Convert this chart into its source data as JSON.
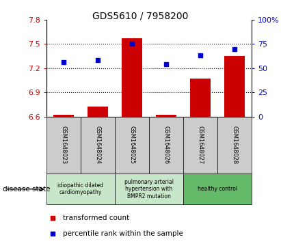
{
  "title": "GDS5610 / 7958200",
  "samples": [
    "GSM1648023",
    "GSM1648024",
    "GSM1648025",
    "GSM1648026",
    "GSM1648027",
    "GSM1648028"
  ],
  "transformed_count": [
    6.62,
    6.72,
    7.57,
    6.62,
    7.07,
    7.35
  ],
  "percentile_rank": [
    56,
    58,
    75,
    54,
    63,
    70
  ],
  "ylim_left": [
    6.6,
    7.8
  ],
  "ylim_right": [
    0,
    100
  ],
  "yticks_left": [
    6.6,
    6.9,
    7.2,
    7.5,
    7.8
  ],
  "yticks_right": [
    0,
    25,
    50,
    75,
    100
  ],
  "ytick_labels_left": [
    "6.6",
    "6.9",
    "7.2",
    "7.5",
    "7.8"
  ],
  "ytick_labels_right": [
    "0",
    "25",
    "50",
    "75",
    "100%"
  ],
  "hlines": [
    6.9,
    7.2,
    7.5
  ],
  "bar_color": "#cc0000",
  "dot_color": "#0000cc",
  "bar_bottom": 6.6,
  "group_configs": [
    {
      "indices": [
        0,
        1
      ],
      "label": "idiopathic dilated\ncardiomyopathy",
      "color": "#c8e6c9"
    },
    {
      "indices": [
        2,
        3
      ],
      "label": "pulmonary arterial\nhypertension with\nBMPR2 mutation",
      "color": "#c8e6c9"
    },
    {
      "indices": [
        4,
        5
      ],
      "label": "healthy control",
      "color": "#66bb6a"
    }
  ],
  "legend_bar_label": "transformed count",
  "legend_dot_label": "percentile rank within the sample",
  "disease_state_label": "disease state",
  "tick_color_left": "#cc0000",
  "tick_color_right": "#0000cc",
  "sample_box_color": "#cccccc",
  "figsize": [
    4.11,
    3.63
  ],
  "dpi": 100
}
